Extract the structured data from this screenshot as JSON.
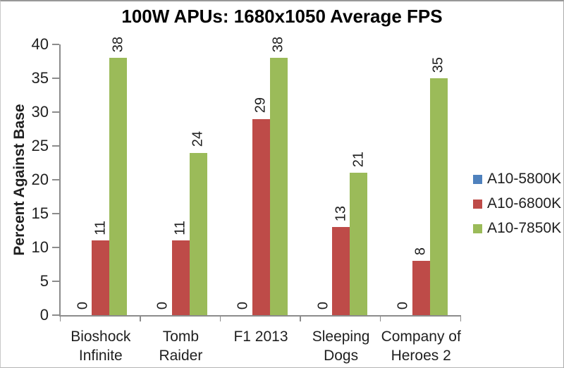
{
  "chart_data": {
    "type": "bar",
    "title": "100W APUs: 1680x1050 Average FPS",
    "ylabel": "Percent Against Base",
    "xlabel": "",
    "categories": [
      "Bioshock Infinite",
      "Tomb Raider",
      "F1 2013",
      "Sleeping Dogs",
      "Company of Heroes 2"
    ],
    "category_label_lines": [
      [
        "Bioshock",
        "Infinite"
      ],
      [
        "Tomb Raider"
      ],
      [
        "F1 2013"
      ],
      [
        "Sleeping",
        "Dogs"
      ],
      [
        "Company of",
        "Heroes 2"
      ]
    ],
    "series": [
      {
        "name": "A10-5800K",
        "color": "#4F81BD",
        "values": [
          0,
          0,
          0,
          0,
          0
        ]
      },
      {
        "name": "A10-6800K",
        "color": "#BE4B48",
        "values": [
          11,
          11,
          29,
          13,
          8
        ]
      },
      {
        "name": "A10-7850K",
        "color": "#9BBB59",
        "values": [
          38,
          24,
          38,
          21,
          35
        ]
      }
    ],
    "ylim": [
      0,
      40
    ],
    "ytick_step": 5,
    "yticks": [
      0,
      5,
      10,
      15,
      20,
      25,
      30,
      35,
      40
    ],
    "grid": false,
    "legend_position": "right",
    "data_labels": "rotated-90-above-bars",
    "axis_color": "#8C8C8C",
    "text_color": "#1F1F1F"
  }
}
